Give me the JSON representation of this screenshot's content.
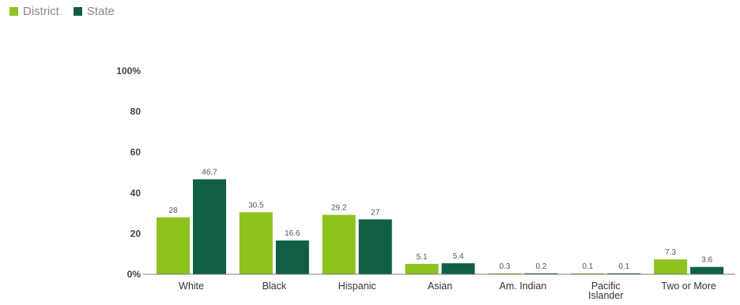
{
  "legend": {
    "items": [
      {
        "label": "District",
        "color": "#8dc21f"
      },
      {
        "label": "State",
        "color": "#0f5e45"
      }
    ]
  },
  "chart_data": {
    "type": "bar",
    "title": "",
    "xlabel": "",
    "ylabel": "",
    "ylim": [
      0,
      100
    ],
    "yticks": [
      {
        "value": 0,
        "label": "0%"
      },
      {
        "value": 20,
        "label": "20"
      },
      {
        "value": 40,
        "label": "40"
      },
      {
        "value": 60,
        "label": "60"
      },
      {
        "value": 80,
        "label": "80"
      },
      {
        "value": 100,
        "label": "100%"
      }
    ],
    "grid": false,
    "legend_position": "top-left",
    "categories": [
      [
        "White"
      ],
      [
        "Black"
      ],
      [
        "Hispanic"
      ],
      [
        "Asian"
      ],
      [
        "Am. Indian"
      ],
      [
        "Pacific",
        "Islander"
      ],
      [
        "Two or More"
      ]
    ],
    "series": [
      {
        "name": "District",
        "color": "#8dc21f",
        "values": [
          28,
          30.5,
          29.2,
          5.1,
          0.3,
          0.1,
          7.3
        ],
        "labels": [
          "28",
          "30.5",
          "29.2",
          "5.1",
          "0.3",
          "0.1",
          "7.3"
        ]
      },
      {
        "name": "State",
        "color": "#0f5e45",
        "values": [
          46.7,
          16.6,
          27,
          5.4,
          0.2,
          0.1,
          3.6
        ],
        "labels": [
          "46.7",
          "16.6",
          "27",
          "5.4",
          "0.2",
          "0.1",
          "3.6"
        ]
      }
    ]
  }
}
